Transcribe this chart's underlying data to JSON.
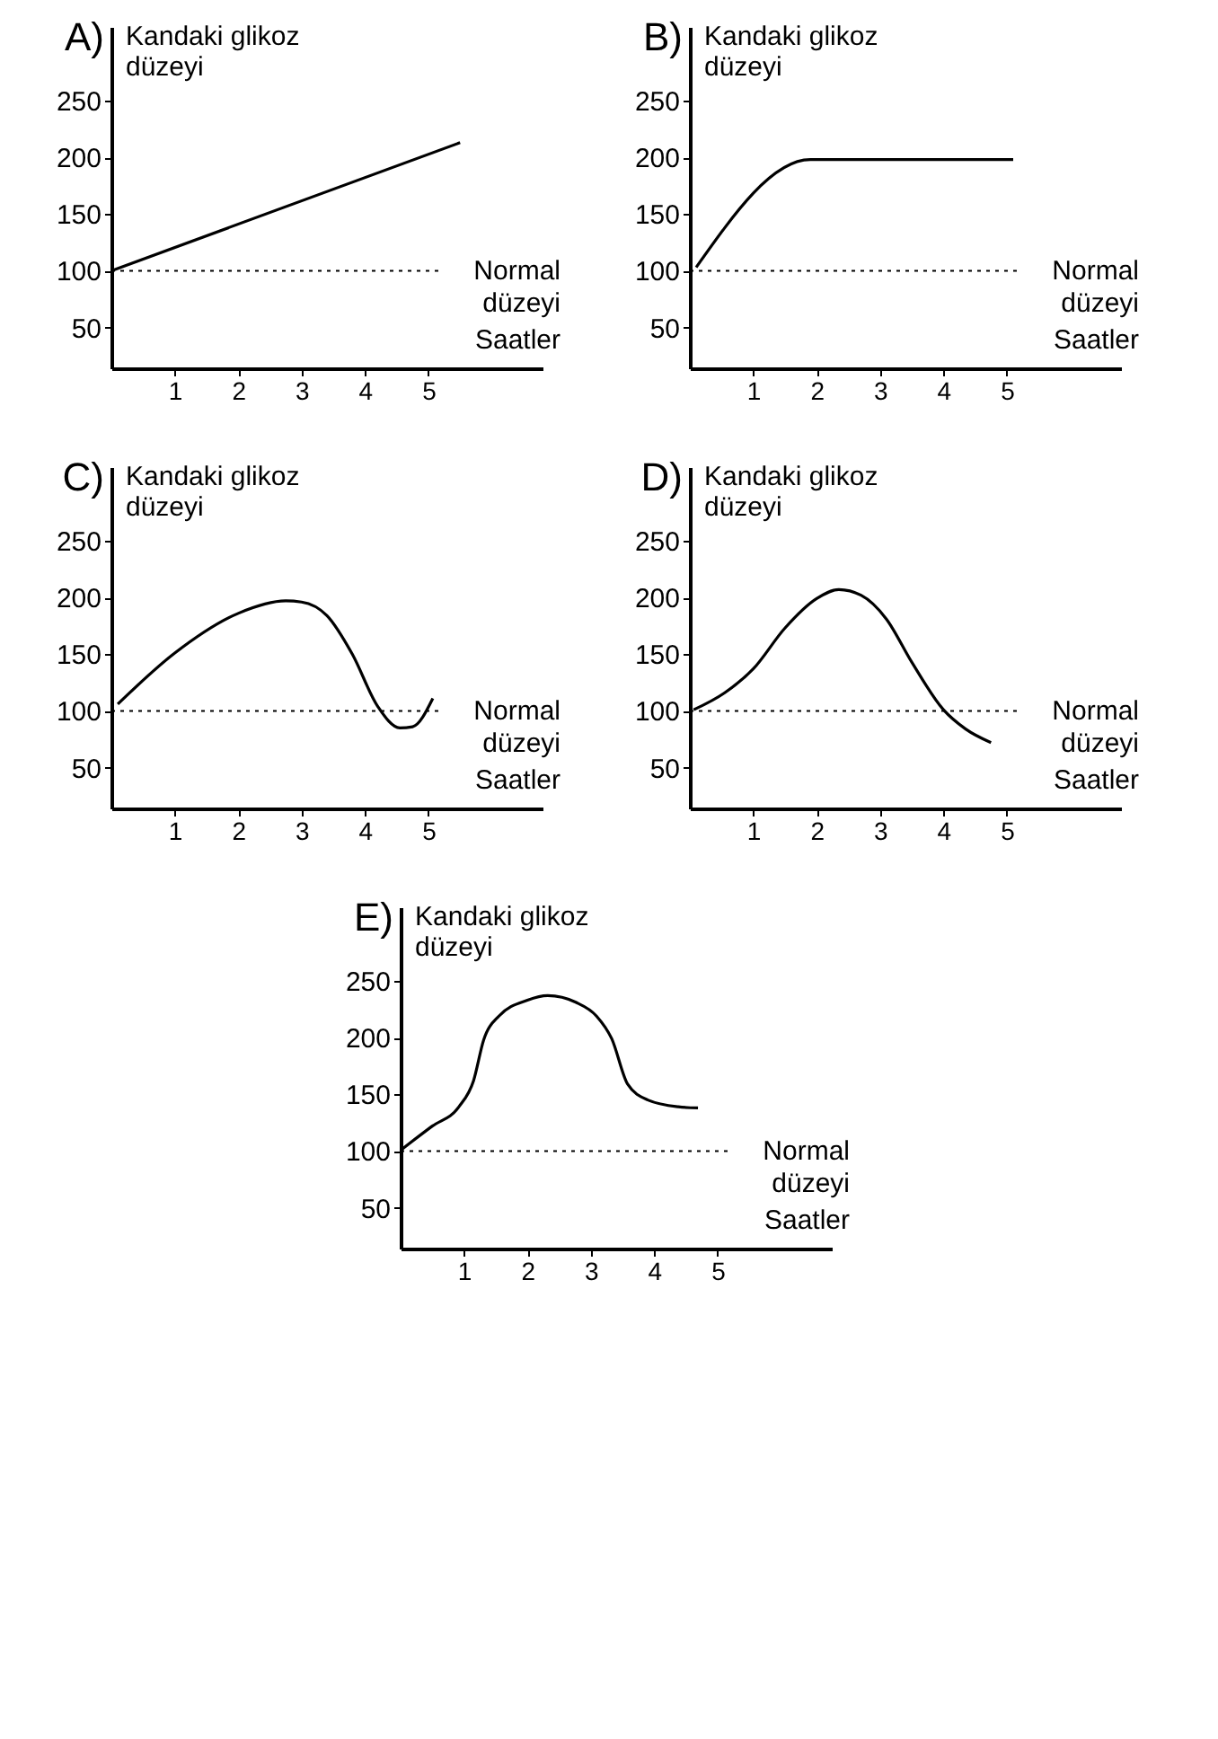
{
  "chart_data": [
    {
      "type": "line",
      "title": "A)",
      "ylabel": "Kandaki glikoz düzeyi",
      "xlabel": "Saatler",
      "xlim": [
        0,
        6.8
      ],
      "ylim": [
        14,
        315
      ],
      "xticks": [
        1,
        2,
        3,
        4,
        5
      ],
      "yticks": [
        50,
        100,
        150,
        200,
        250
      ],
      "grid": false,
      "series": [
        {
          "color": "#000000",
          "x": [
            0,
            5.5
          ],
          "values": [
            100,
            213
          ]
        }
      ],
      "ref_lines": [
        {
          "axis": "y",
          "value": 100,
          "label": "Normal düzeyi",
          "line_style": "dotted",
          "color": "#000000"
        }
      ]
    },
    {
      "type": "line",
      "title": "B)",
      "ylabel": "Kandaki glikoz düzeyi",
      "xlabel": "Saatler",
      "xlim": [
        0,
        6.8
      ],
      "ylim": [
        14,
        315
      ],
      "xticks": [
        1,
        2,
        3,
        4,
        5
      ],
      "yticks": [
        50,
        100,
        150,
        200,
        250
      ],
      "grid": false,
      "series": [
        {
          "color": "#000000",
          "x": [
            0.1,
            1.9,
            5.1
          ],
          "values": [
            103,
            198,
            198
          ]
        }
      ],
      "ref_lines": [
        {
          "axis": "y",
          "value": 100,
          "label": "Normal düzeyi",
          "line_style": "dotted",
          "color": "#000000"
        }
      ]
    },
    {
      "type": "line",
      "title": "C)",
      "ylabel": "Kandaki glikoz düzeyi",
      "xlabel": "Saatler",
      "xlim": [
        0,
        6.8
      ],
      "ylim": [
        14,
        315
      ],
      "xticks": [
        1,
        2,
        3,
        4,
        5
      ],
      "yticks": [
        50,
        100,
        150,
        200,
        250
      ],
      "grid": false,
      "series": [
        {
          "color": "#000000",
          "x": [
            0.1,
            1,
            2,
            2.75,
            3,
            3.4,
            3.8,
            4.2,
            4.55,
            4.75,
            5.07
          ],
          "values": [
            106,
            151,
            186,
            197,
            196,
            184,
            150,
            104,
            85,
            86,
            111
          ]
        }
      ],
      "ref_lines": [
        {
          "axis": "y",
          "value": 100,
          "label": "Normal düzeyi",
          "line_style": "dotted",
          "color": "#000000"
        }
      ]
    },
    {
      "type": "line",
      "title": "D)",
      "ylabel": "Kandaki glikoz düzeyi",
      "xlabel": "Saatler",
      "xlim": [
        0,
        6.8
      ],
      "ylim": [
        14,
        315
      ],
      "xticks": [
        1,
        2,
        3,
        4,
        5
      ],
      "yticks": [
        50,
        100,
        150,
        200,
        250
      ],
      "grid": false,
      "series": [
        {
          "color": "#000000",
          "x": [
            0.06,
            0.55,
            1,
            1.5,
            2,
            2.35,
            2.7,
            3.1,
            3.5,
            4,
            4.35,
            4.75
          ],
          "values": [
            101,
            116,
            137,
            173,
            199,
            207,
            202,
            181,
            143,
            101,
            84,
            72
          ]
        }
      ],
      "ref_lines": [
        {
          "axis": "y",
          "value": 100,
          "label": "Normal düzeyi",
          "line_style": "dotted",
          "color": "#000000"
        }
      ]
    },
    {
      "type": "line",
      "title": "E)",
      "ylabel": "Kandaki glikoz düzeyi",
      "xlabel": "Saatler",
      "xlim": [
        0,
        6.8
      ],
      "ylim": [
        14,
        315
      ],
      "xticks": [
        1,
        2,
        3,
        4,
        5
      ],
      "yticks": [
        50,
        100,
        150,
        200,
        250
      ],
      "grid": false,
      "series": [
        {
          "color": "#000000",
          "x": [
            0.03,
            0.5,
            0.92,
            1.15,
            1.31,
            1.55,
            2,
            2.32,
            2.77,
            3.09,
            3.33,
            3.58,
            3.9,
            4.38,
            4.69
          ],
          "values": [
            102,
            122,
            139,
            162,
            198,
            219,
            233,
            237,
            231,
            219,
            199,
            159,
            145,
            139,
            138
          ]
        }
      ],
      "ref_lines": [
        {
          "axis": "y",
          "value": 100,
          "label": "Normal düzeyi",
          "line_style": "dotted",
          "color": "#000000"
        }
      ]
    }
  ]
}
